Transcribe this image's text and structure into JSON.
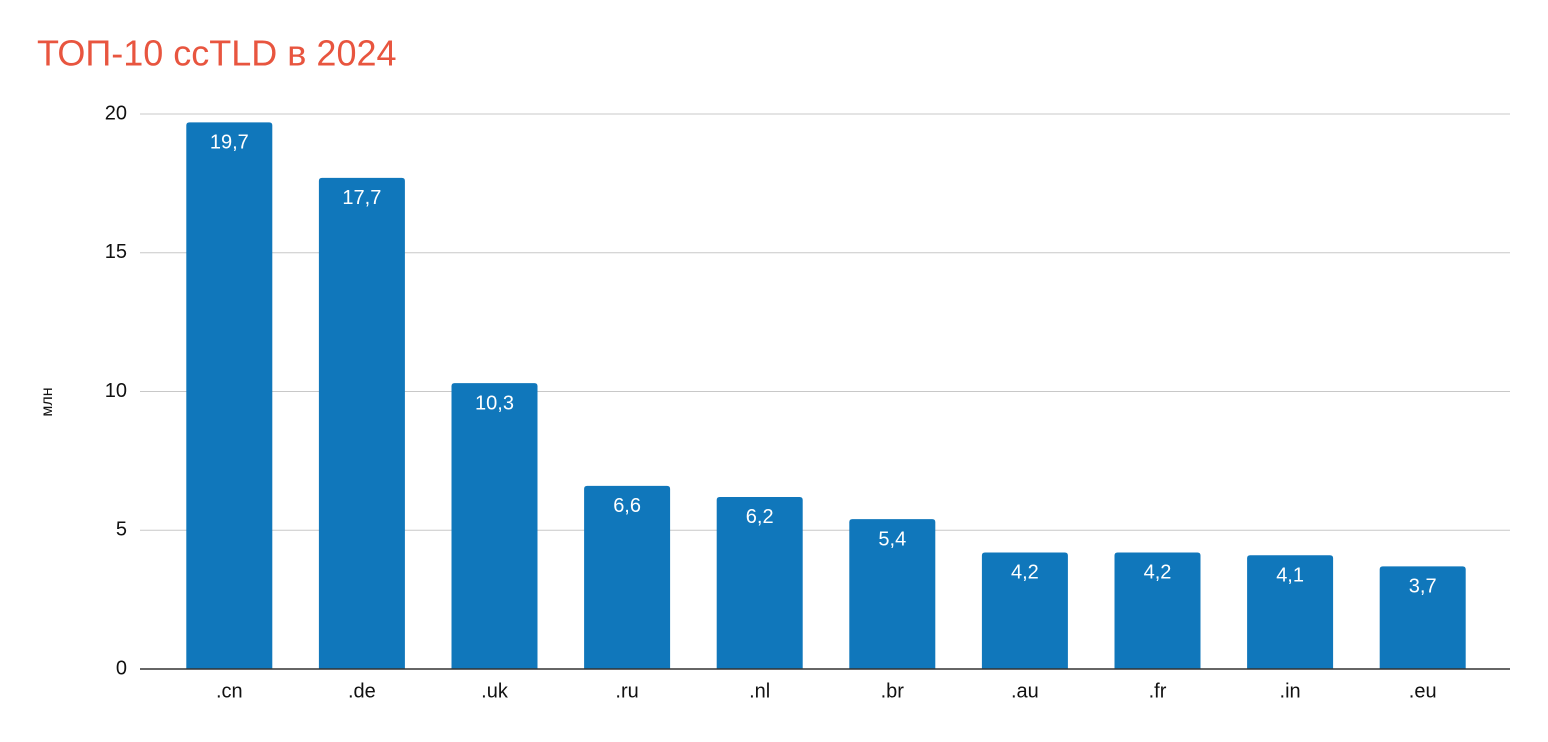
{
  "chart_data": {
    "type": "bar",
    "title": "ТОП-10 ccTLD в 2024",
    "y_label": "млн",
    "categories": [
      ".cn",
      ".de",
      ".uk",
      ".ru",
      ".nl",
      ".br",
      ".au",
      ".fr",
      ".in",
      ".eu"
    ],
    "values": [
      19.7,
      17.7,
      10.3,
      6.6,
      6.2,
      5.4,
      4.2,
      4.2,
      4.1,
      3.7
    ],
    "value_labels": [
      "19,7",
      "17,7",
      "10,3",
      "6,6",
      "6,2",
      "5,4",
      "4,2",
      "4,2",
      "4,1",
      "3,7"
    ],
    "color": "#1077bb",
    "title_color": "#e8553f",
    "ylim": [
      0,
      20
    ],
    "yticks": [
      0,
      5,
      10,
      15,
      20
    ],
    "grid": true
  }
}
